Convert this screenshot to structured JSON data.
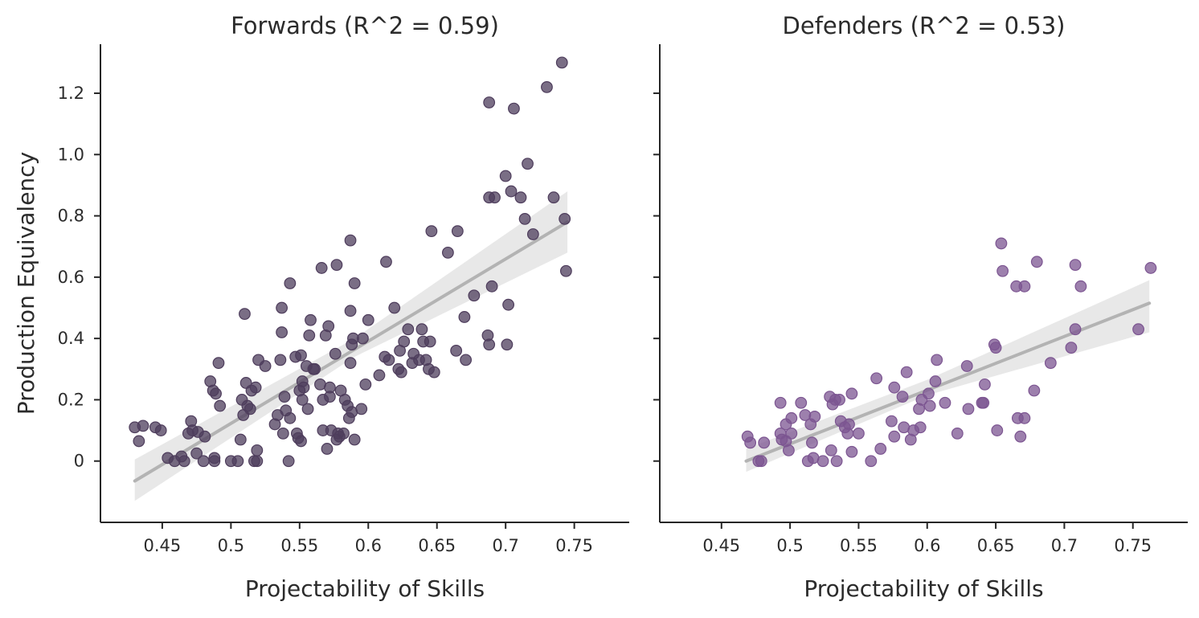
{
  "chart_data": [
    {
      "type": "scatter",
      "title": "Forwards (R^2 = 0.59)",
      "xlabel": "Projectability of Skills",
      "ylabel": "Production Equivalency",
      "xlim": [
        0.405,
        0.79
      ],
      "ylim": [
        -0.2,
        1.36
      ],
      "xticks": [
        0.45,
        0.5,
        0.55,
        0.6,
        0.65,
        0.7,
        0.75
      ],
      "xtick_labels": [
        "0.45",
        "0.5",
        "0.55",
        "0.6",
        "0.65",
        "0.7",
        "0.75"
      ],
      "yticks": [
        0,
        0.2,
        0.4,
        0.6,
        0.8,
        1.0,
        1.2
      ],
      "ytick_labels": [
        "0",
        "0.2",
        "0.4",
        "0.6",
        "0.8",
        "1.0",
        "1.2"
      ],
      "grid": false,
      "point_color": "#4e3d5c",
      "fit_color": "#b3b3b3",
      "ci_color": "#e8e8e8",
      "fit_line": {
        "x": [
          0.43,
          0.745
        ],
        "y": [
          -0.065,
          0.78
        ]
      },
      "ci_band": {
        "x": [
          0.43,
          0.59,
          0.745
        ],
        "upper": [
          0.005,
          0.4,
          0.88
        ],
        "lower": [
          -0.13,
          0.34,
          0.68
        ]
      },
      "points": [
        [
          0.43,
          0.11
        ],
        [
          0.433,
          0.065
        ],
        [
          0.436,
          0.115
        ],
        [
          0.445,
          0.11
        ],
        [
          0.449,
          0.1
        ],
        [
          0.454,
          0.01
        ],
        [
          0.459,
          0.0
        ],
        [
          0.464,
          0.015
        ],
        [
          0.466,
          0.0
        ],
        [
          0.469,
          0.09
        ],
        [
          0.471,
          0.13
        ],
        [
          0.472,
          0.1
        ],
        [
          0.475,
          0.025
        ],
        [
          0.476,
          0.095
        ],
        [
          0.48,
          0.0
        ],
        [
          0.481,
          0.08
        ],
        [
          0.485,
          0.26
        ],
        [
          0.487,
          0.23
        ],
        [
          0.488,
          0.01
        ],
        [
          0.488,
          0.0
        ],
        [
          0.489,
          0.22
        ],
        [
          0.491,
          0.32
        ],
        [
          0.492,
          0.18
        ],
        [
          0.5,
          0.0
        ],
        [
          0.505,
          0.0
        ],
        [
          0.507,
          0.07
        ],
        [
          0.508,
          0.2
        ],
        [
          0.509,
          0.15
        ],
        [
          0.51,
          0.48
        ],
        [
          0.511,
          0.255
        ],
        [
          0.512,
          0.18
        ],
        [
          0.514,
          0.17
        ],
        [
          0.515,
          0.23
        ],
        [
          0.517,
          0.0
        ],
        [
          0.518,
          0.24
        ],
        [
          0.519,
          0.0
        ],
        [
          0.519,
          0.035
        ],
        [
          0.52,
          0.33
        ],
        [
          0.525,
          0.31
        ],
        [
          0.532,
          0.12
        ],
        [
          0.534,
          0.15
        ],
        [
          0.536,
          0.33
        ],
        [
          0.537,
          0.5
        ],
        [
          0.537,
          0.42
        ],
        [
          0.538,
          0.09
        ],
        [
          0.539,
          0.21
        ],
        [
          0.54,
          0.165
        ],
        [
          0.542,
          0.0
        ],
        [
          0.543,
          0.58
        ],
        [
          0.543,
          0.14
        ],
        [
          0.547,
          0.34
        ],
        [
          0.548,
          0.09
        ],
        [
          0.549,
          0.075
        ],
        [
          0.55,
          0.23
        ],
        [
          0.551,
          0.065
        ],
        [
          0.551,
          0.345
        ],
        [
          0.552,
          0.26
        ],
        [
          0.552,
          0.2
        ],
        [
          0.553,
          0.24
        ],
        [
          0.555,
          0.31
        ],
        [
          0.556,
          0.17
        ],
        [
          0.557,
          0.41
        ],
        [
          0.558,
          0.46
        ],
        [
          0.56,
          0.3
        ],
        [
          0.561,
          0.3
        ],
        [
          0.565,
          0.25
        ],
        [
          0.566,
          0.63
        ],
        [
          0.567,
          0.1
        ],
        [
          0.567,
          0.2
        ],
        [
          0.569,
          0.41
        ],
        [
          0.57,
          0.04
        ],
        [
          0.571,
          0.44
        ],
        [
          0.572,
          0.21
        ],
        [
          0.572,
          0.24
        ],
        [
          0.573,
          0.1
        ],
        [
          0.576,
          0.35
        ],
        [
          0.577,
          0.64
        ],
        [
          0.577,
          0.07
        ],
        [
          0.578,
          0.09
        ],
        [
          0.579,
          0.08
        ],
        [
          0.58,
          0.23
        ],
        [
          0.582,
          0.09
        ],
        [
          0.583,
          0.2
        ],
        [
          0.585,
          0.18
        ],
        [
          0.586,
          0.14
        ],
        [
          0.587,
          0.72
        ],
        [
          0.587,
          0.49
        ],
        [
          0.587,
          0.32
        ],
        [
          0.588,
          0.16
        ],
        [
          0.588,
          0.38
        ],
        [
          0.589,
          0.4
        ],
        [
          0.59,
          0.58
        ],
        [
          0.59,
          0.07
        ],
        [
          0.595,
          0.17
        ],
        [
          0.596,
          0.4
        ],
        [
          0.598,
          0.25
        ],
        [
          0.6,
          0.46
        ],
        [
          0.608,
          0.28
        ],
        [
          0.612,
          0.34
        ],
        [
          0.613,
          0.65
        ],
        [
          0.615,
          0.33
        ],
        [
          0.619,
          0.5
        ],
        [
          0.622,
          0.3
        ],
        [
          0.623,
          0.36
        ],
        [
          0.624,
          0.29
        ],
        [
          0.626,
          0.39
        ],
        [
          0.629,
          0.43
        ],
        [
          0.632,
          0.32
        ],
        [
          0.633,
          0.35
        ],
        [
          0.637,
          0.33
        ],
        [
          0.639,
          0.43
        ],
        [
          0.64,
          0.39
        ],
        [
          0.642,
          0.33
        ],
        [
          0.644,
          0.3
        ],
        [
          0.645,
          0.39
        ],
        [
          0.646,
          0.75
        ],
        [
          0.648,
          0.29
        ],
        [
          0.658,
          0.68
        ],
        [
          0.664,
          0.36
        ],
        [
          0.665,
          0.75
        ],
        [
          0.67,
          0.47
        ],
        [
          0.671,
          0.33
        ],
        [
          0.677,
          0.54
        ],
        [
          0.687,
          0.41
        ],
        [
          0.688,
          0.38
        ],
        [
          0.688,
          0.86
        ],
        [
          0.688,
          1.17
        ],
        [
          0.69,
          0.57
        ],
        [
          0.692,
          0.86
        ],
        [
          0.7,
          0.93
        ],
        [
          0.701,
          0.38
        ],
        [
          0.702,
          0.51
        ],
        [
          0.704,
          0.88
        ],
        [
          0.706,
          1.15
        ],
        [
          0.711,
          0.86
        ],
        [
          0.714,
          0.79
        ],
        [
          0.716,
          0.97
        ],
        [
          0.72,
          0.74
        ],
        [
          0.73,
          1.22
        ],
        [
          0.735,
          0.86
        ],
        [
          0.741,
          1.3
        ],
        [
          0.743,
          0.79
        ],
        [
          0.744,
          0.62
        ]
      ]
    },
    {
      "type": "scatter",
      "title": "Defenders (R^2 = 0.53)",
      "xlabel": "Projectability of Skills",
      "ylabel": "",
      "xlim": [
        0.405,
        0.79
      ],
      "ylim": [
        -0.2,
        1.36
      ],
      "xticks": [
        0.45,
        0.5,
        0.55,
        0.6,
        0.65,
        0.7,
        0.75
      ],
      "xtick_labels": [
        "0.45",
        "0.5",
        "0.55",
        "0.6",
        "0.65",
        "0.7",
        "0.75"
      ],
      "yticks": [
        0,
        0.2,
        0.4,
        0.6,
        0.8,
        1.0,
        1.2
      ],
      "ytick_labels": [],
      "grid": false,
      "point_color": "#7c5591",
      "fit_color": "#b3b3b3",
      "ci_color": "#e8e8e8",
      "fit_line": {
        "x": [
          0.468,
          0.762
        ],
        "y": [
          0.0,
          0.515
        ]
      },
      "ci_band": {
        "x": [
          0.468,
          0.6,
          0.762
        ],
        "upper": [
          0.04,
          0.265,
          0.59
        ],
        "lower": [
          -0.035,
          0.215,
          0.42
        ]
      },
      "points": [
        [
          0.469,
          0.08
        ],
        [
          0.471,
          0.06
        ],
        [
          0.477,
          0.0
        ],
        [
          0.479,
          0.0
        ],
        [
          0.481,
          0.06
        ],
        [
          0.493,
          0.19
        ],
        [
          0.493,
          0.09
        ],
        [
          0.494,
          0.07
        ],
        [
          0.497,
          0.12
        ],
        [
          0.497,
          0.065
        ],
        [
          0.499,
          0.035
        ],
        [
          0.501,
          0.14
        ],
        [
          0.501,
          0.09
        ],
        [
          0.508,
          0.19
        ],
        [
          0.511,
          0.15
        ],
        [
          0.513,
          0.0
        ],
        [
          0.515,
          0.12
        ],
        [
          0.516,
          0.06
        ],
        [
          0.517,
          0.01
        ],
        [
          0.518,
          0.145
        ],
        [
          0.524,
          0.0
        ],
        [
          0.529,
          0.21
        ],
        [
          0.53,
          0.035
        ],
        [
          0.531,
          0.185
        ],
        [
          0.533,
          0.2
        ],
        [
          0.534,
          0.0
        ],
        [
          0.536,
          0.2
        ],
        [
          0.537,
          0.13
        ],
        [
          0.54,
          0.11
        ],
        [
          0.542,
          0.09
        ],
        [
          0.543,
          0.12
        ],
        [
          0.545,
          0.03
        ],
        [
          0.545,
          0.22
        ],
        [
          0.55,
          0.09
        ],
        [
          0.559,
          0.0
        ],
        [
          0.563,
          0.27
        ],
        [
          0.566,
          0.04
        ],
        [
          0.574,
          0.13
        ],
        [
          0.576,
          0.08
        ],
        [
          0.576,
          0.24
        ],
        [
          0.582,
          0.21
        ],
        [
          0.583,
          0.11
        ],
        [
          0.585,
          0.29
        ],
        [
          0.588,
          0.07
        ],
        [
          0.59,
          0.1
        ],
        [
          0.594,
          0.17
        ],
        [
          0.595,
          0.11
        ],
        [
          0.596,
          0.2
        ],
        [
          0.601,
          0.22
        ],
        [
          0.602,
          0.18
        ],
        [
          0.606,
          0.26
        ],
        [
          0.607,
          0.33
        ],
        [
          0.613,
          0.19
        ],
        [
          0.622,
          0.09
        ],
        [
          0.629,
          0.31
        ],
        [
          0.63,
          0.17
        ],
        [
          0.64,
          0.19
        ],
        [
          0.641,
          0.19
        ],
        [
          0.642,
          0.25
        ],
        [
          0.649,
          0.38
        ],
        [
          0.65,
          0.37
        ],
        [
          0.651,
          0.1
        ],
        [
          0.654,
          0.71
        ],
        [
          0.655,
          0.62
        ],
        [
          0.665,
          0.57
        ],
        [
          0.666,
          0.14
        ],
        [
          0.668,
          0.08
        ],
        [
          0.671,
          0.57
        ],
        [
          0.671,
          0.14
        ],
        [
          0.678,
          0.23
        ],
        [
          0.68,
          0.65
        ],
        [
          0.69,
          0.32
        ],
        [
          0.705,
          0.37
        ],
        [
          0.708,
          0.43
        ],
        [
          0.708,
          0.64
        ],
        [
          0.712,
          0.57
        ],
        [
          0.754,
          0.43
        ],
        [
          0.763,
          0.63
        ]
      ]
    }
  ]
}
